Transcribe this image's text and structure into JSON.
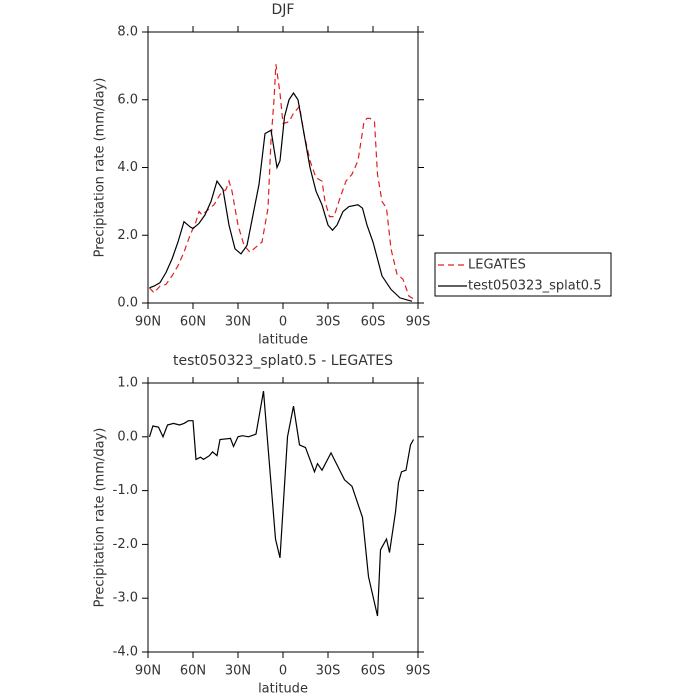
{
  "chart_data": [
    {
      "type": "line",
      "title": "DJF",
      "xlabel": "latitude",
      "ylabel": "Precipitation rate (mm/day)",
      "xlim": [
        90,
        -90
      ],
      "ylim": [
        0,
        8
      ],
      "xticks": [
        {
          "value": 90,
          "label": "90N"
        },
        {
          "value": 60,
          "label": "60N"
        },
        {
          "value": 30,
          "label": "30N"
        },
        0,
        {
          "value": -30,
          "label": "30S"
        },
        {
          "value": -60,
          "label": "60S"
        },
        {
          "value": -90,
          "label": "90S"
        }
      ],
      "yticks": [
        {
          "value": 0,
          "label": "0.0"
        },
        {
          "value": 2,
          "label": "2.0"
        },
        {
          "value": 4,
          "label": "4.0"
        },
        {
          "value": 6,
          "label": "6.0"
        },
        {
          "value": 8,
          "label": "8.0"
        }
      ],
      "legend": "outside right",
      "series": [
        {
          "name": "LEGATES",
          "color": "#e02020",
          "dash": "dashed",
          "x": [
            89,
            86,
            82,
            78,
            74,
            70,
            66,
            62,
            58,
            56,
            54,
            50,
            46,
            42,
            38,
            36,
            34,
            30,
            26,
            22,
            18,
            14,
            10,
            8,
            6,
            4.7,
            2,
            0,
            -4,
            -7,
            -11,
            -14,
            -18,
            -22,
            -26,
            -28,
            -31,
            -34,
            -38,
            -42,
            -46,
            -50,
            -54,
            -56,
            -58,
            -61,
            -63,
            -66,
            -69,
            -72,
            -76,
            -80,
            -84,
            -88
          ],
          "values": [
            0.45,
            0.3,
            0.5,
            0.55,
            0.8,
            1.1,
            1.5,
            2.0,
            2.4,
            2.7,
            2.6,
            2.75,
            2.9,
            3.2,
            3.35,
            3.6,
            3.3,
            2.3,
            1.7,
            1.5,
            1.65,
            1.8,
            2.8,
            4.8,
            6.0,
            7.05,
            6.2,
            5.3,
            5.35,
            5.6,
            5.8,
            5.0,
            4.2,
            3.7,
            3.6,
            3.0,
            2.55,
            2.55,
            3.1,
            3.6,
            3.8,
            4.2,
            5.35,
            5.45,
            5.45,
            5.35,
            3.8,
            3.0,
            2.8,
            1.6,
            0.85,
            0.7,
            0.2,
            0.1
          ]
        },
        {
          "name": "test050323_splat0.5",
          "color": "#000000",
          "dash": "solid",
          "x": [
            89,
            86,
            82,
            78,
            74,
            70,
            66,
            62,
            60,
            56,
            52,
            48,
            44,
            40,
            36,
            32,
            28,
            24,
            20,
            16,
            12,
            8,
            4,
            2,
            -1,
            -4,
            -7,
            -10,
            -14,
            -18,
            -22,
            -26,
            -30,
            -33,
            -36,
            -40,
            -44,
            -50,
            -53,
            -56,
            -60,
            -66,
            -72,
            -78,
            -86
          ],
          "values": [
            0.45,
            0.5,
            0.6,
            0.9,
            1.3,
            1.8,
            2.4,
            2.25,
            2.2,
            2.35,
            2.6,
            3.0,
            3.6,
            3.35,
            2.3,
            1.6,
            1.45,
            1.7,
            2.6,
            3.5,
            5.0,
            5.1,
            4.0,
            4.2,
            5.5,
            6.0,
            6.2,
            6.0,
            5.0,
            4.0,
            3.3,
            2.9,
            2.3,
            2.15,
            2.3,
            2.7,
            2.85,
            2.9,
            2.8,
            2.3,
            1.8,
            0.8,
            0.4,
            0.15,
            0.05
          ]
        }
      ]
    },
    {
      "type": "line",
      "title": "test050323_splat0.5 - LEGATES",
      "xlabel": "latitude",
      "ylabel": "Precipitation rate (mm/day)",
      "xlim": [
        90,
        -90
      ],
      "ylim": [
        -4,
        1
      ],
      "xticks": [
        {
          "value": 90,
          "label": "90N"
        },
        {
          "value": 60,
          "label": "60N"
        },
        {
          "value": 30,
          "label": "30N"
        },
        0,
        {
          "value": -30,
          "label": "30S"
        },
        {
          "value": -60,
          "label": "60S"
        },
        {
          "value": -90,
          "label": "90S"
        }
      ],
      "yticks": [
        {
          "value": -4,
          "label": "-4.0"
        },
        {
          "value": -3,
          "label": "-3.0"
        },
        {
          "value": -2,
          "label": "-2.0"
        },
        {
          "value": -1,
          "label": "-1.0"
        },
        {
          "value": 0,
          "label": "0.0"
        },
        {
          "value": 1,
          "label": "1.0"
        }
      ],
      "series": [
        {
          "color": "#000000",
          "dash": "solid",
          "x": [
            89,
            86.7,
            83,
            80,
            77,
            73,
            69,
            66,
            63,
            60,
            58,
            55,
            53,
            49,
            47,
            44,
            42,
            35,
            33,
            30,
            27,
            23,
            18,
            13,
            5,
            2,
            -3,
            -7,
            -11,
            -15,
            -21,
            -23,
            -26,
            -32,
            -41,
            -46,
            -53,
            -57,
            -63,
            -65,
            -69,
            -71,
            -75,
            -77,
            -79,
            -82,
            -85,
            -87
          ],
          "values": [
            0.0,
            0.2,
            0.18,
            0.0,
            0.22,
            0.25,
            0.22,
            0.25,
            0.3,
            0.3,
            -0.42,
            -0.38,
            -0.42,
            -0.35,
            -0.28,
            -0.35,
            -0.05,
            -0.03,
            -0.18,
            0.0,
            0.02,
            0.0,
            0.05,
            0.85,
            -1.9,
            -2.25,
            0.0,
            0.57,
            -0.15,
            -0.2,
            -0.65,
            -0.5,
            -0.62,
            -0.3,
            -0.8,
            -0.92,
            -1.5,
            -2.6,
            -3.33,
            -2.1,
            -1.9,
            -2.15,
            -1.4,
            -0.85,
            -0.65,
            -0.62,
            -0.15,
            -0.05
          ]
        }
      ]
    }
  ]
}
